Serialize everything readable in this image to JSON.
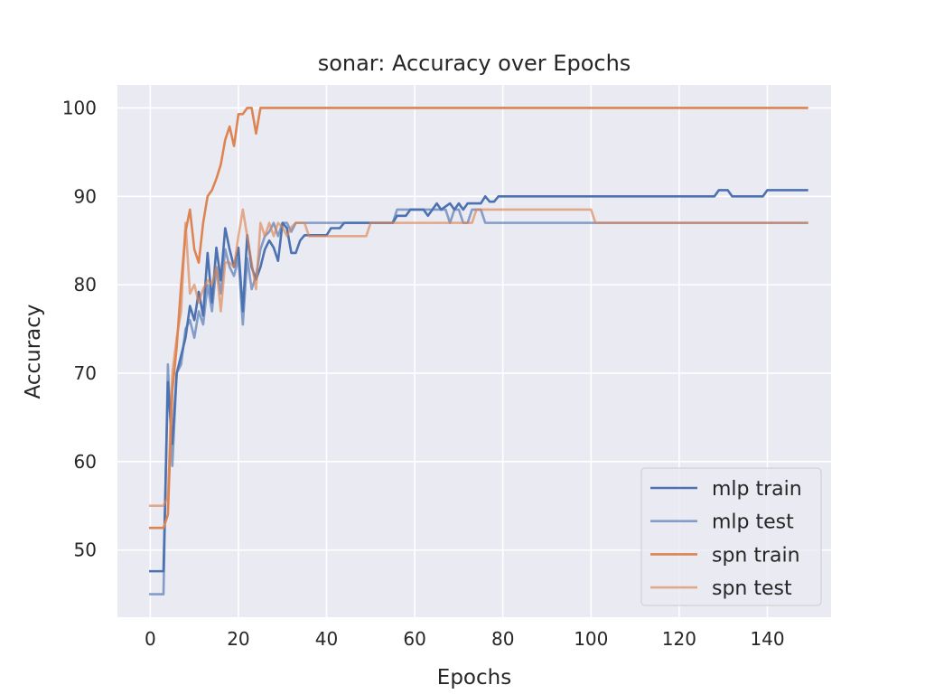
{
  "chart_data": {
    "type": "line",
    "title": "sonar: Accuracy over Epochs",
    "xlabel": "Epochs",
    "ylabel": "Accuracy",
    "xlim": [
      -7.45,
      154.45
    ],
    "ylim": [
      42.4,
      102.6
    ],
    "xticks": [
      0,
      20,
      40,
      60,
      80,
      100,
      120,
      140
    ],
    "yticks": [
      50,
      60,
      70,
      80,
      90,
      100
    ],
    "grid": true,
    "legend_position": "lower-right",
    "series": [
      {
        "name": "mlp train",
        "color": "#4c72b0",
        "opacity": 1.0,
        "points": [
          [
            0,
            47.6
          ],
          [
            3,
            47.6
          ],
          [
            4,
            69.0
          ],
          [
            5,
            62.0
          ],
          [
            6,
            70.0
          ],
          [
            7,
            72.0
          ],
          [
            8,
            74.0
          ],
          [
            9,
            77.6
          ],
          [
            10,
            76.0
          ],
          [
            11,
            79.2
          ],
          [
            12,
            76.5
          ],
          [
            13,
            83.6
          ],
          [
            14,
            78.0
          ],
          [
            15,
            84.2
          ],
          [
            16,
            80.5
          ],
          [
            17,
            86.4
          ],
          [
            18,
            84.0
          ],
          [
            19,
            82.0
          ],
          [
            20,
            84.2
          ],
          [
            21,
            77.0
          ],
          [
            22,
            85.6
          ],
          [
            23,
            82.0
          ],
          [
            24,
            80.6
          ],
          [
            25,
            82.0
          ],
          [
            26,
            84.0
          ],
          [
            27,
            85.0
          ],
          [
            28,
            84.2
          ],
          [
            29,
            82.7
          ],
          [
            30,
            87.0
          ],
          [
            31,
            86.4
          ],
          [
            32,
            83.6
          ],
          [
            33,
            83.6
          ],
          [
            34,
            85.0
          ],
          [
            35,
            85.6
          ],
          [
            36,
            85.6
          ],
          [
            40,
            85.6
          ],
          [
            41,
            86.4
          ],
          [
            43,
            86.4
          ],
          [
            44,
            87.0
          ],
          [
            55,
            87.0
          ],
          [
            56,
            87.8
          ],
          [
            58,
            87.8
          ],
          [
            59,
            88.5
          ],
          [
            62,
            88.5
          ],
          [
            63,
            87.8
          ],
          [
            64,
            88.5
          ],
          [
            65,
            89.2
          ],
          [
            66,
            88.5
          ],
          [
            68,
            89.2
          ],
          [
            69,
            88.5
          ],
          [
            70,
            89.2
          ],
          [
            71,
            88.5
          ],
          [
            72,
            89.2
          ],
          [
            75,
            89.2
          ],
          [
            76,
            90.0
          ],
          [
            77,
            89.4
          ],
          [
            78,
            89.4
          ],
          [
            79,
            90.0
          ],
          [
            128,
            90.0
          ],
          [
            129,
            90.7
          ],
          [
            131,
            90.7
          ],
          [
            132,
            90.0
          ],
          [
            139,
            90.0
          ],
          [
            140,
            90.7
          ],
          [
            149,
            90.7
          ]
        ]
      },
      {
        "name": "mlp test",
        "color": "#4c72b0",
        "opacity": 0.65,
        "points": [
          [
            0,
            45.0
          ],
          [
            3,
            45.0
          ],
          [
            4,
            71.0
          ],
          [
            5,
            59.5
          ],
          [
            6,
            70.0
          ],
          [
            7,
            71.0
          ],
          [
            8,
            75.0
          ],
          [
            9,
            76.0
          ],
          [
            10,
            74.0
          ],
          [
            11,
            77.0
          ],
          [
            12,
            75.5
          ],
          [
            13,
            80.0
          ],
          [
            14,
            77.0
          ],
          [
            15,
            82.0
          ],
          [
            16,
            79.0
          ],
          [
            17,
            84.0
          ],
          [
            18,
            82.0
          ],
          [
            19,
            81.0
          ],
          [
            20,
            83.0
          ],
          [
            21,
            75.5
          ],
          [
            22,
            83.0
          ],
          [
            23,
            79.5
          ],
          [
            24,
            81.0
          ],
          [
            25,
            84.0
          ],
          [
            26,
            85.5
          ],
          [
            27,
            86.0
          ],
          [
            28,
            87.0
          ],
          [
            29,
            85.5
          ],
          [
            30,
            87.0
          ],
          [
            31,
            87.0
          ],
          [
            32,
            86.0
          ],
          [
            33,
            87.0
          ],
          [
            55,
            87.0
          ],
          [
            56,
            88.5
          ],
          [
            67,
            88.5
          ],
          [
            68,
            87.0
          ],
          [
            69,
            88.5
          ],
          [
            70,
            88.5
          ],
          [
            71,
            87.0
          ],
          [
            72,
            87.0
          ],
          [
            73,
            88.5
          ],
          [
            75,
            88.5
          ],
          [
            76,
            87.0
          ],
          [
            149,
            87.0
          ]
        ]
      },
      {
        "name": "spn train",
        "color": "#dd8452",
        "opacity": 1.0,
        "points": [
          [
            0,
            52.5
          ],
          [
            3,
            52.5
          ],
          [
            4,
            54.0
          ],
          [
            5,
            68.0
          ],
          [
            6,
            73.0
          ],
          [
            7,
            80.0
          ],
          [
            8,
            86.0
          ],
          [
            9,
            88.5
          ],
          [
            10,
            84.0
          ],
          [
            11,
            82.5
          ],
          [
            12,
            87.0
          ],
          [
            13,
            90.0
          ],
          [
            14,
            90.7
          ],
          [
            15,
            92.0
          ],
          [
            16,
            93.6
          ],
          [
            17,
            96.4
          ],
          [
            18,
            97.9
          ],
          [
            19,
            95.7
          ],
          [
            20,
            99.3
          ],
          [
            21,
            99.3
          ],
          [
            22,
            100.0
          ],
          [
            23,
            100.0
          ],
          [
            24,
            97.1
          ],
          [
            25,
            100.0
          ],
          [
            149,
            100.0
          ]
        ]
      },
      {
        "name": "spn test",
        "color": "#dd8452",
        "opacity": 0.65,
        "points": [
          [
            0,
            55.0
          ],
          [
            3,
            55.0
          ],
          [
            4,
            56.0
          ],
          [
            5,
            70.0
          ],
          [
            6,
            74.0
          ],
          [
            7,
            77.0
          ],
          [
            8,
            87.0
          ],
          [
            9,
            79.0
          ],
          [
            10,
            80.0
          ],
          [
            11,
            78.0
          ],
          [
            12,
            79.5
          ],
          [
            13,
            80.5
          ],
          [
            14,
            80.0
          ],
          [
            15,
            82.0
          ],
          [
            16,
            77.0
          ],
          [
            17,
            82.5
          ],
          [
            18,
            82.5
          ],
          [
            19,
            82.0
          ],
          [
            20,
            85.5
          ],
          [
            21,
            88.5
          ],
          [
            22,
            85.5
          ],
          [
            23,
            82.5
          ],
          [
            24,
            79.5
          ],
          [
            25,
            87.0
          ],
          [
            26,
            85.5
          ],
          [
            27,
            87.0
          ],
          [
            28,
            85.5
          ],
          [
            29,
            87.0
          ],
          [
            30,
            86.5
          ],
          [
            31,
            85.5
          ],
          [
            32,
            86.5
          ],
          [
            33,
            87.0
          ],
          [
            35,
            87.0
          ],
          [
            36,
            85.5
          ],
          [
            49,
            85.5
          ],
          [
            50,
            87.0
          ],
          [
            73,
            87.0
          ],
          [
            74,
            88.5
          ],
          [
            100,
            88.5
          ],
          [
            101,
            87.0
          ],
          [
            149,
            87.0
          ]
        ]
      }
    ]
  }
}
